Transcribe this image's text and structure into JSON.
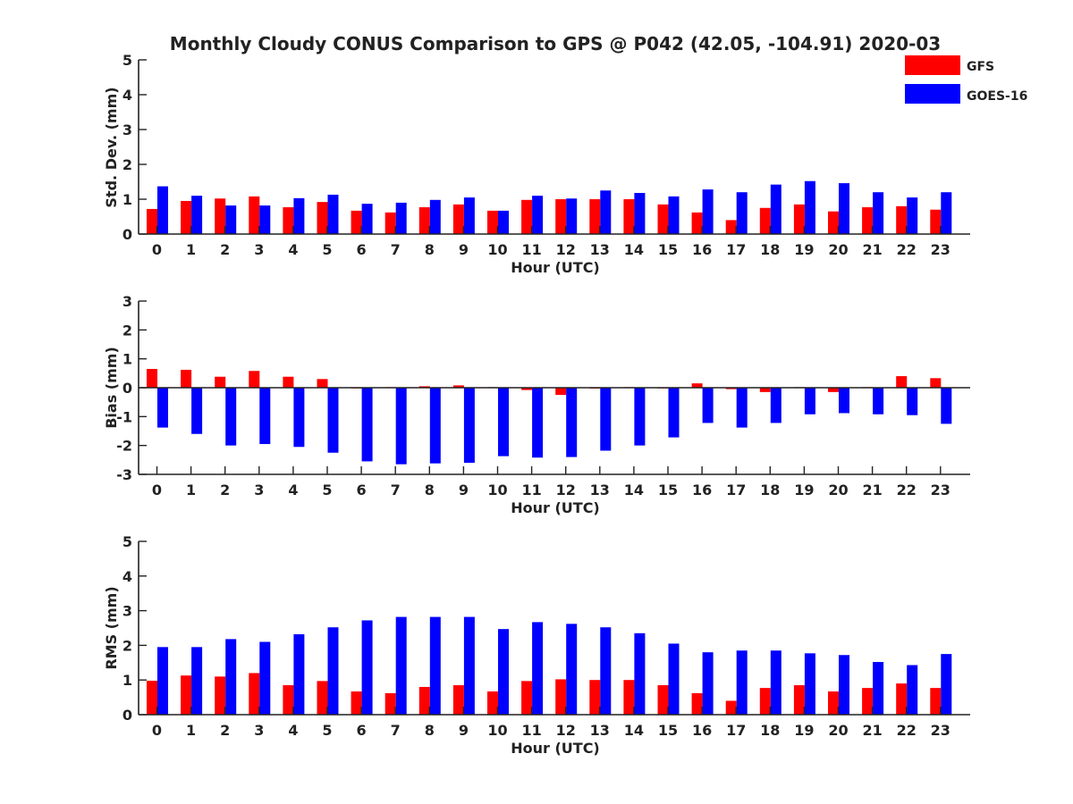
{
  "title": "Monthly Cloudy CONUS Comparison to GPS @ P042 (42.05, -104.91) 2020-03",
  "legend": [
    {
      "label": "GFS",
      "color": "#ff0000"
    },
    {
      "label": "GOES-16",
      "color": "#0000ff"
    }
  ],
  "chart_data": [
    {
      "type": "bar",
      "title": "",
      "xlabel": "Hour (UTC)",
      "ylabel": "Std. Dev. (mm)",
      "ylim": [
        0,
        5
      ],
      "yticks": [
        0,
        1,
        2,
        3,
        4,
        5
      ],
      "categories": [
        "0",
        "1",
        "2",
        "3",
        "4",
        "5",
        "6",
        "7",
        "8",
        "9",
        "10",
        "11",
        "12",
        "13",
        "14",
        "15",
        "16",
        "17",
        "18",
        "19",
        "20",
        "21",
        "22",
        "23"
      ],
      "series": [
        {
          "name": "GFS",
          "color": "#ff0000",
          "values": [
            0.72,
            0.95,
            1.02,
            1.08,
            0.77,
            0.92,
            0.67,
            0.62,
            0.77,
            0.85,
            0.67,
            0.98,
            1.0,
            1.0,
            1.0,
            0.85,
            0.62,
            0.4,
            0.75,
            0.85,
            0.65,
            0.77,
            0.8,
            0.7
          ]
        },
        {
          "name": "GOES-16",
          "color": "#0000ff",
          "values": [
            1.37,
            1.1,
            0.82,
            0.82,
            1.03,
            1.13,
            0.87,
            0.9,
            0.98,
            1.05,
            0.67,
            1.1,
            1.02,
            1.25,
            1.18,
            1.08,
            1.28,
            1.2,
            1.42,
            1.52,
            1.46,
            1.2,
            1.05,
            1.2
          ]
        }
      ]
    },
    {
      "type": "bar",
      "title": "",
      "xlabel": "Hour (UTC)",
      "ylabel": "Bias (mm)",
      "ylim": [
        -3,
        3
      ],
      "yticks": [
        -3,
        -2,
        -1,
        0,
        1,
        2,
        3
      ],
      "categories": [
        "0",
        "1",
        "2",
        "3",
        "4",
        "5",
        "6",
        "7",
        "8",
        "9",
        "10",
        "11",
        "12",
        "13",
        "14",
        "15",
        "16",
        "17",
        "18",
        "19",
        "20",
        "21",
        "22",
        "23"
      ],
      "series": [
        {
          "name": "GFS",
          "color": "#ff0000",
          "values": [
            0.65,
            0.62,
            0.38,
            0.58,
            0.38,
            0.3,
            0.0,
            0.02,
            0.05,
            0.08,
            0.02,
            -0.08,
            -0.25,
            -0.03,
            0.02,
            0.0,
            0.15,
            -0.05,
            -0.15,
            0.02,
            -0.15,
            0.02,
            0.4,
            0.33
          ]
        },
        {
          "name": "GOES-16",
          "color": "#0000ff",
          "values": [
            -1.38,
            -1.6,
            -2.0,
            -1.95,
            -2.05,
            -2.25,
            -2.55,
            -2.65,
            -2.62,
            -2.6,
            -2.37,
            -2.42,
            -2.4,
            -2.18,
            -2.0,
            -1.72,
            -1.22,
            -1.38,
            -1.22,
            -0.92,
            -0.88,
            -0.92,
            -0.95,
            -1.25
          ]
        }
      ]
    },
    {
      "type": "bar",
      "title": "",
      "xlabel": "Hour (UTC)",
      "ylabel": "RMS (mm)",
      "ylim": [
        0,
        5
      ],
      "yticks": [
        0,
        1,
        2,
        3,
        4,
        5
      ],
      "categories": [
        "0",
        "1",
        "2",
        "3",
        "4",
        "5",
        "6",
        "7",
        "8",
        "9",
        "10",
        "11",
        "12",
        "13",
        "14",
        "15",
        "16",
        "17",
        "18",
        "19",
        "20",
        "21",
        "22",
        "23"
      ],
      "series": [
        {
          "name": "GFS",
          "color": "#ff0000",
          "values": [
            0.98,
            1.13,
            1.1,
            1.2,
            0.85,
            0.97,
            0.67,
            0.62,
            0.8,
            0.85,
            0.67,
            0.97,
            1.02,
            1.0,
            1.0,
            0.85,
            0.62,
            0.4,
            0.77,
            0.85,
            0.67,
            0.77,
            0.9,
            0.77
          ]
        },
        {
          "name": "GOES-16",
          "color": "#0000ff",
          "values": [
            1.95,
            1.95,
            2.18,
            2.1,
            2.32,
            2.52,
            2.72,
            2.82,
            2.82,
            2.82,
            2.47,
            2.67,
            2.62,
            2.52,
            2.35,
            2.05,
            1.8,
            1.85,
            1.85,
            1.77,
            1.72,
            1.52,
            1.43,
            1.75
          ]
        }
      ]
    }
  ]
}
